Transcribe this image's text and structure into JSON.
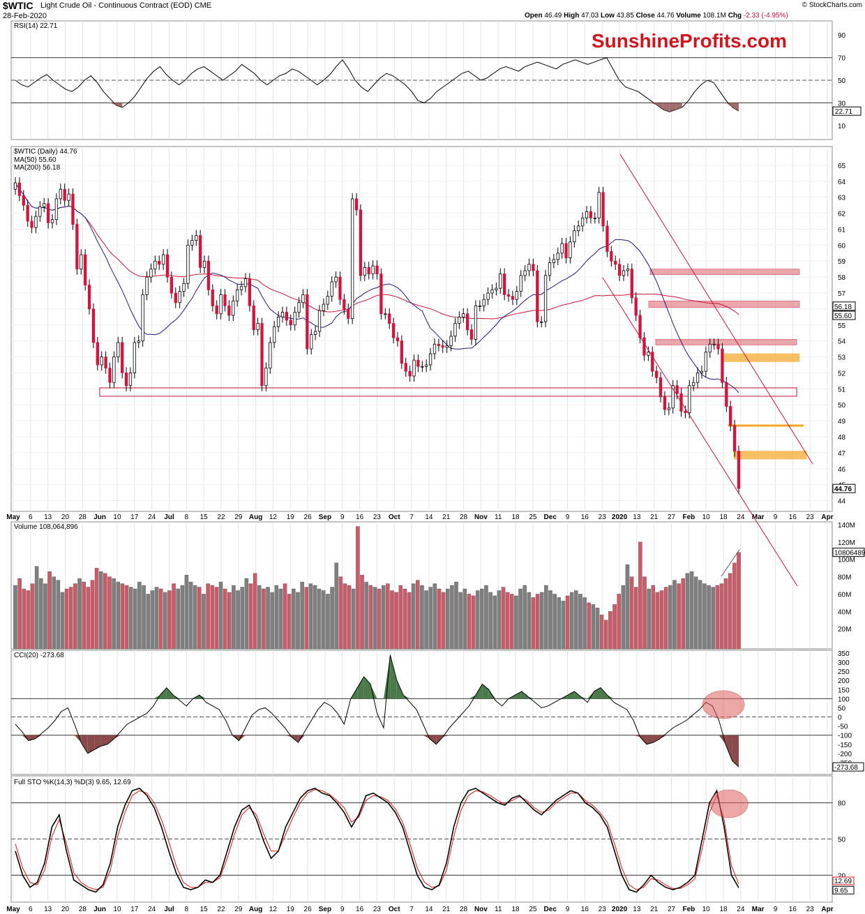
{
  "header": {
    "symbol": "$WTIC",
    "name": "Light Crude Oil - Continuous Contract (EOD) CME",
    "date": "28-Feb-2020",
    "open_label": "Open",
    "open": "46.49",
    "high_label": "High",
    "high": "47.03",
    "low_label": "Low",
    "low": "43.85",
    "close_label": "Close",
    "close": "44.76",
    "volume_label": "Volume",
    "volume": "108.1M",
    "chg_label": "Chg",
    "chg": "-2.33 (-4.95%)",
    "source": "© StockCharts.com"
  },
  "watermark": "SunshineProfits.com",
  "colors": {
    "up": "#ffffff",
    "down": "#d3143c",
    "vol_up": "#7f7f7f",
    "vol_down": "#cc5a68",
    "ma50": "#1c1c7a",
    "ma200": "#c8143c",
    "zone_red": "#e07a80",
    "zone_orange": "#f6a623",
    "brand": "#d3141c",
    "cci_pos": "#4a7a4a",
    "cci_neg": "#8a4a4a",
    "sto_d": "#e11515"
  },
  "chart_data": [
    {
      "type": "line",
      "panel": "RSI",
      "title": "RSI(14) 22.71",
      "ylim": [
        0,
        100
      ],
      "y_ticks": [
        "90",
        "70",
        "50",
        "30",
        "10"
      ],
      "levels": [
        70,
        50,
        30
      ],
      "last_value": "22.71",
      "values": [
        50,
        46,
        44,
        48,
        52,
        55,
        50,
        46,
        42,
        40,
        44,
        50,
        54,
        48,
        40,
        34,
        28,
        26,
        30,
        36,
        44,
        52,
        58,
        62,
        55,
        50,
        46,
        50,
        56,
        60,
        62,
        58,
        54,
        50,
        54,
        58,
        64,
        60,
        56,
        50,
        46,
        50,
        54,
        56,
        60,
        58,
        54,
        50,
        46,
        50,
        55,
        62,
        68,
        60,
        50,
        44,
        40,
        46,
        52,
        56,
        54,
        50,
        46,
        40,
        32,
        30,
        34,
        40,
        44,
        48,
        52,
        56,
        58,
        54,
        50,
        52,
        56,
        60,
        62,
        60,
        58,
        62,
        64,
        66,
        64,
        62,
        60,
        64,
        66,
        68,
        66,
        64,
        66,
        68,
        70,
        60,
        50,
        44,
        42,
        40,
        36,
        32,
        28,
        24,
        22,
        24,
        26,
        32,
        40,
        46,
        50,
        48,
        40,
        32,
        26,
        22.71
      ],
      "x_ticks": [
        "May",
        "6",
        "13",
        "20",
        "28",
        "Jun",
        "10",
        "17",
        "24",
        "Jul",
        "8",
        "15",
        "22",
        "29",
        "Aug",
        "12",
        "19",
        "26",
        "Sep",
        "9",
        "16",
        "23",
        "Oct",
        "7",
        "14",
        "21",
        "28",
        "Nov",
        "11",
        "18",
        "25",
        "Dec",
        "9",
        "16",
        "23",
        "2020",
        "13",
        "21",
        "27",
        "Feb",
        "10",
        "18",
        "24",
        "Mar",
        "9",
        "16",
        "23",
        "Apr"
      ]
    },
    {
      "type": "candlestick",
      "panel": "Price",
      "title": "$WTIC (Daily) 44.76",
      "ma50_label": "MA(50) 55.60",
      "ma200_label": "MA(200) 56.18",
      "ylim": [
        43.5,
        66
      ],
      "y_ticks": [
        "65",
        "64",
        "63",
        "62",
        "61",
        "60",
        "59",
        "58",
        "57",
        "56",
        "55",
        "54",
        "53",
        "52",
        "51",
        "50",
        "49",
        "48",
        "47",
        "46",
        "45",
        "44"
      ],
      "last_close": "44.76",
      "ma50_last": "55.60",
      "ma200_last": "56.18",
      "closes": [
        63.9,
        63.1,
        62.5,
        61.5,
        61.1,
        61.8,
        62.4,
        62.6,
        61.4,
        61.6,
        62.9,
        63.5,
        62.8,
        63.2,
        61.3,
        58.5,
        59.4,
        57.5,
        56,
        53.9,
        52.5,
        53,
        52.3,
        51.4,
        53,
        53.9,
        52,
        51.2,
        52,
        53.9,
        54,
        56.9,
        58,
        58.5,
        59,
        58.8,
        59.4,
        58,
        57,
        56.4,
        57.1,
        57.6,
        60,
        60.3,
        60.6,
        58.6,
        59,
        57.2,
        56.2,
        55.7,
        56.9,
        56.2,
        55.6,
        56.5,
        57.2,
        57.4,
        57.9,
        56.2,
        54.7,
        55.1,
        51.2,
        52.3,
        53.9,
        54.9,
        55.5,
        55.8,
        55.3,
        55,
        55.8,
        56.4,
        56.9,
        53.5,
        54.4,
        54.6,
        55.9,
        56.3,
        56.8,
        57.7,
        58,
        56.6,
        56,
        55.4,
        62.9,
        62.2,
        58.1,
        58.6,
        58.2,
        58.7,
        58.2,
        55.7,
        55.7,
        55.1,
        54.2,
        54,
        52.6,
        52.1,
        51.8,
        52.8,
        52.4,
        52.4,
        52.5,
        53.2,
        53.8,
        53.7,
        53.6,
        53.7,
        54.3,
        55.1,
        55.5,
        55.7,
        54.7,
        54.1,
        56.2,
        56.2,
        56.6,
        57,
        57.2,
        57.3,
        58.2,
        56.9,
        56.8,
        56.6,
        57.1,
        58.1,
        58.4,
        58.8,
        58.4,
        55.2,
        55.2,
        58.1,
        58.9,
        59.1,
        59.5,
        60.1,
        59.2,
        60.2,
        60.9,
        61.2,
        61.7,
        62.1,
        61.7,
        61.7,
        63.3,
        61.2,
        59.6,
        59,
        58.8,
        58.1,
        58.4,
        58.5,
        56.7,
        55.6,
        54.2,
        53.1,
        53.3,
        52.1,
        51.7,
        50.5,
        49.7,
        49.8,
        51.2,
        50.7,
        49.6,
        49.5,
        51.2,
        51.4,
        52,
        52.1,
        53.3,
        53.8,
        53.8,
        53.5,
        51.4,
        49.9,
        48.7,
        47.1,
        44.76
      ],
      "reference_lines": [
        {
          "name": "support 50.8",
          "price": 50.8
        },
        {
          "name": "resistance zone 58.4",
          "low": 58.2,
          "high": 58.5
        },
        {
          "name": "resistance zone 56.4",
          "low": 56.1,
          "high": 56.5
        },
        {
          "name": "resistance zone 54",
          "low": 53.8,
          "high": 54.1
        },
        {
          "name": "orange zone 53.1",
          "low": 52.7,
          "high": 53.2
        },
        {
          "name": "orange line 48.7",
          "price": 48.7
        },
        {
          "name": "orange zone 46.9",
          "low": 46.6,
          "high": 47.1
        }
      ]
    },
    {
      "type": "bar",
      "panel": "Volume",
      "title": "Volume 108,064,896",
      "ylim": [
        0,
        140
      ],
      "y_ticks": [
        "140M",
        "120M",
        "100M",
        "80M",
        "60M",
        "40M",
        "20M"
      ],
      "last_value": "108064896",
      "values_millions": [
        70,
        78,
        66,
        64,
        72,
        92,
        78,
        72,
        86,
        80,
        76,
        62,
        66,
        68,
        72,
        78,
        74,
        68,
        76,
        90,
        86,
        84,
        80,
        78,
        74,
        72,
        70,
        68,
        66,
        74,
        70,
        60,
        64,
        68,
        66,
        62,
        64,
        72,
        66,
        70,
        82,
        74,
        70,
        68,
        60,
        72,
        70,
        68,
        74,
        66,
        62,
        70,
        64,
        68,
        78,
        72,
        84,
        70,
        66,
        68,
        62,
        70,
        66,
        72,
        60,
        66,
        62,
        74,
        68,
        72,
        70,
        66,
        64,
        60,
        68,
        96,
        80,
        72,
        70,
        66,
        138,
        82,
        74,
        70,
        68,
        66,
        70,
        72,
        64,
        62,
        70,
        66,
        62,
        72,
        76,
        70,
        64,
        68,
        72,
        66,
        62,
        66,
        70,
        74,
        62,
        66,
        60,
        58,
        64,
        66,
        70,
        62,
        58,
        64,
        68,
        62,
        60,
        58,
        66,
        70,
        62,
        56,
        60,
        62,
        70,
        64,
        60,
        56,
        52,
        58,
        62,
        64,
        60,
        56,
        50,
        48,
        44,
        36,
        30,
        40,
        48,
        60,
        70,
        94,
        80,
        68,
        120,
        80,
        66,
        70,
        62,
        64,
        68,
        70,
        76,
        72,
        78,
        84,
        86,
        80,
        76,
        72,
        70,
        68,
        70,
        72,
        78,
        84,
        96,
        108.1
      ]
    },
    {
      "type": "line",
      "panel": "CCI",
      "title": "CCI(20) -273.68",
      "ylim": [
        -300,
        350
      ],
      "y_ticks": [
        "350",
        "300",
        "250",
        "200",
        "150",
        "100",
        "50",
        "0",
        "-50",
        "-100",
        "-150",
        "-200",
        "-250"
      ],
      "levels": [
        100,
        0,
        -100
      ],
      "last_value": "-273.68",
      "values": [
        -40,
        -80,
        -130,
        -120,
        -90,
        -60,
        -20,
        30,
        50,
        -40,
        -140,
        -200,
        -180,
        -160,
        -150,
        -120,
        -80,
        -40,
        -20,
        0,
        20,
        60,
        120,
        160,
        120,
        90,
        60,
        100,
        120,
        80,
        60,
        40,
        -20,
        -100,
        -130,
        -60,
        10,
        40,
        50,
        20,
        -20,
        -60,
        -110,
        -140,
        -80,
        -20,
        40,
        80,
        60,
        20,
        -40,
        100,
        160,
        220,
        180,
        20,
        -60,
        340,
        200,
        120,
        80,
        40,
        -40,
        -120,
        -150,
        -110,
        -60,
        -20,
        20,
        60,
        120,
        180,
        150,
        90,
        60,
        100,
        120,
        140,
        110,
        80,
        50,
        60,
        80,
        100,
        120,
        140,
        110,
        80,
        140,
        160,
        120,
        80,
        60,
        40,
        -20,
        -110,
        -150,
        -140,
        -120,
        -90,
        -60,
        -40,
        -20,
        10,
        40,
        80,
        60,
        -20,
        -150,
        -240,
        -273.68
      ]
    },
    {
      "type": "line",
      "panel": "Full STO",
      "title": "Full STO %K(14,3) %D(3) 9.65, 12.69",
      "ylim": [
        0,
        100
      ],
      "y_ticks": [
        "80",
        "50",
        "20"
      ],
      "levels": [
        80,
        50,
        20
      ],
      "k_last": "9.65",
      "d_last": "12.69",
      "k_values": [
        40,
        20,
        10,
        14,
        30,
        60,
        70,
        40,
        16,
        12,
        8,
        6,
        12,
        30,
        60,
        78,
        90,
        92,
        86,
        76,
        60,
        40,
        22,
        10,
        8,
        10,
        16,
        14,
        20,
        40,
        60,
        74,
        78,
        66,
        48,
        34,
        40,
        60,
        72,
        84,
        90,
        92,
        88,
        86,
        80,
        72,
        60,
        70,
        86,
        88,
        84,
        80,
        72,
        60,
        40,
        20,
        10,
        8,
        12,
        30,
        60,
        80,
        90,
        92,
        88,
        84,
        80,
        78,
        84,
        86,
        80,
        74,
        70,
        76,
        82,
        86,
        90,
        88,
        80,
        76,
        70,
        60,
        40,
        20,
        8,
        6,
        12,
        20,
        14,
        10,
        8,
        10,
        14,
        20,
        50,
        80,
        90,
        60,
        20,
        9.65
      ],
      "d_values": [
        46,
        26,
        14,
        12,
        24,
        52,
        66,
        46,
        22,
        14,
        10,
        8,
        10,
        24,
        52,
        72,
        86,
        90,
        88,
        80,
        66,
        48,
        28,
        14,
        10,
        10,
        14,
        14,
        18,
        34,
        54,
        70,
        76,
        70,
        54,
        40,
        40,
        54,
        68,
        80,
        88,
        91,
        90,
        87,
        82,
        76,
        64,
        68,
        82,
        86,
        85,
        82,
        75,
        64,
        46,
        26,
        14,
        10,
        11,
        24,
        52,
        74,
        86,
        90,
        89,
        86,
        82,
        79,
        82,
        85,
        82,
        76,
        72,
        74,
        80,
        84,
        88,
        88,
        82,
        78,
        72,
        64,
        46,
        26,
        12,
        8,
        10,
        17,
        16,
        12,
        9,
        9,
        12,
        17,
        42,
        72,
        86,
        66,
        28,
        12.69
      ]
    }
  ]
}
